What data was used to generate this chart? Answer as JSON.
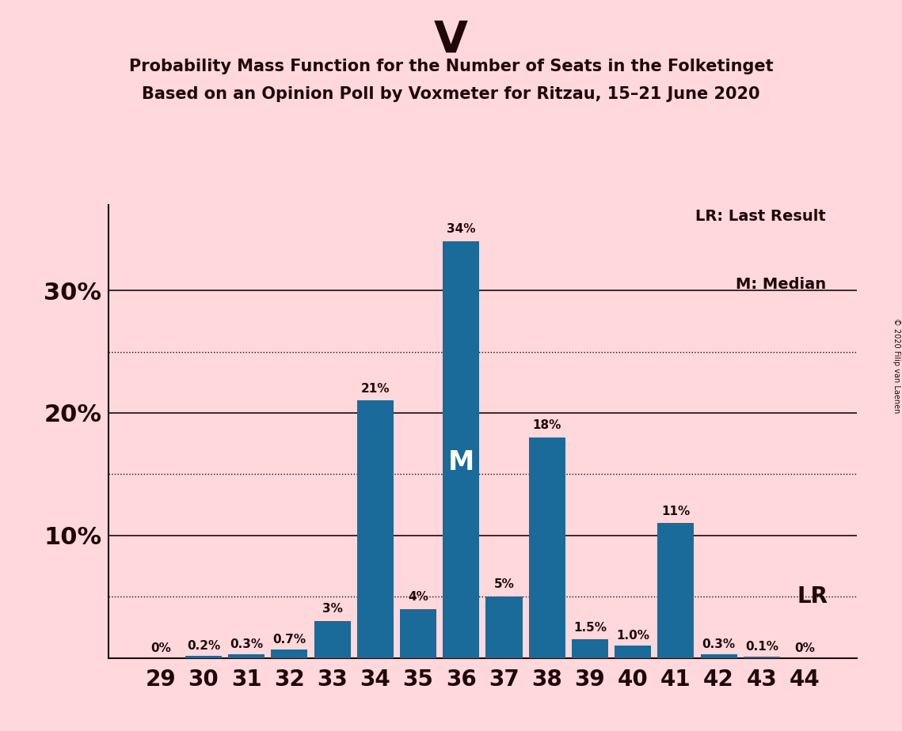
{
  "title_party": "V",
  "title_line1": "Probability Mass Function for the Number of Seats in the Folketinget",
  "title_line2": "Based on an Opinion Poll by Voxmeter for Ritzau, 15–21 June 2020",
  "copyright": "© 2020 Filip van Laenen",
  "categories": [
    29,
    30,
    31,
    32,
    33,
    34,
    35,
    36,
    37,
    38,
    39,
    40,
    41,
    42,
    43,
    44
  ],
  "values": [
    0.0,
    0.2,
    0.3,
    0.7,
    3.0,
    21.0,
    4.0,
    34.0,
    5.0,
    18.0,
    1.5,
    1.0,
    11.0,
    0.3,
    0.1,
    0.0
  ],
  "bar_color": "#1a6a9a",
  "background_color": "#ffd8dc",
  "text_color": "#200808",
  "median_seat": 36,
  "lr_value": 5.0,
  "solid_gridlines": [
    10,
    20,
    30
  ],
  "dotted_gridlines": [
    5,
    15,
    25
  ],
  "ylim": [
    0,
    37
  ],
  "yticks": [
    10,
    20,
    30
  ],
  "ytick_labels": [
    "10%",
    "20%",
    "30%"
  ],
  "legend_lr": "LR: Last Result",
  "legend_m": "M: Median",
  "value_labels": [
    "0%",
    "0.2%",
    "0.3%",
    "0.7%",
    "3%",
    "21%",
    "4%",
    "34%",
    "5%",
    "18%",
    "1.5%",
    "1.0%",
    "11%",
    "0.3%",
    "0.1%",
    "0%"
  ]
}
